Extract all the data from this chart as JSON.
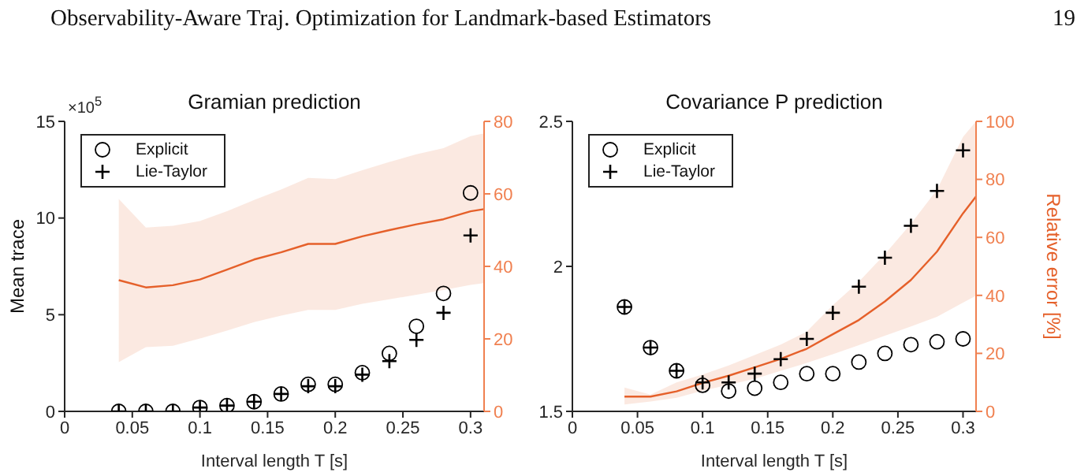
{
  "chart_data": [
    {
      "type": "scatter",
      "title": "Gramian prediction",
      "xlabel": "Interval length T [s]",
      "ylabel": "Mean trace",
      "xlim": [
        0,
        0.31
      ],
      "xticks": [
        0,
        0.05,
        0.1,
        0.15,
        0.2,
        0.25,
        0.3
      ],
      "ylim": [
        0,
        15
      ],
      "yticks": [
        0,
        5,
        10,
        15
      ],
      "y2lim": [
        0,
        80
      ],
      "y2ticks": [
        0,
        20,
        40,
        60,
        80
      ],
      "legend": "top left",
      "annotations": [
        "Observability-Aware Traj. Optimization for Landmark-based Estimators",
        "19",
        "×10$^{5}$"
      ],
      "x": [
        0.04,
        0.06,
        0.08,
        0.1,
        0.12,
        0.14,
        0.16,
        0.18,
        0.2,
        0.22,
        0.24,
        0.26,
        0.28,
        0.3
      ],
      "series": [
        {
          "name": "Explicit",
          "type": "scatter",
          "marker": "circle",
          "color": "#000000",
          "values": [
            0,
            0,
            0,
            0.2,
            0.3,
            0.5,
            0.9,
            1.4,
            1.4,
            2,
            3,
            4.4,
            6.1,
            11.3
          ]
        },
        {
          "name": "Lie-Taylor",
          "type": "scatter",
          "marker": "cross",
          "color": "#000000",
          "values": [
            0,
            0,
            0,
            0.2,
            0.3,
            0.5,
            0.9,
            1.3,
            1.3,
            1.9,
            2.6,
            3.7,
            5.1,
            9.1
          ]
        },
        {
          "type": "line",
          "axis": "y2",
          "marker": "none",
          "color": "#e5602a",
          "x": [
            0.04,
            0.06,
            0.08,
            0.1,
            0.12,
            0.14,
            0.16,
            0.18,
            0.2,
            0.22,
            0.24,
            0.26,
            0.28,
            0.3,
            0.31
          ],
          "values": [
            36.2,
            34.2,
            34.8,
            36.4,
            39.1,
            41.9,
            43.9,
            46.2,
            46.2,
            48.3,
            50,
            51.6,
            53,
            55.2,
            55.8
          ],
          "lower": [
            13.6,
            17.7,
            18.1,
            20.1,
            22.3,
            24.6,
            26.4,
            28,
            28,
            29.7,
            30.9,
            32.2,
            33.5,
            34.9,
            35.4
          ],
          "upper": [
            58.6,
            50.7,
            51.2,
            52.5,
            55.2,
            58.3,
            61.2,
            64.4,
            64.1,
            66.5,
            68.8,
            70.9,
            72.6,
            75.9,
            76.7
          ]
        }
      ]
    },
    {
      "type": "scatter",
      "title": "Covariance P prediction",
      "xlabel": "Interval length T [s]",
      "y2label": "Relative error [%]",
      "xlim": [
        0,
        0.31
      ],
      "xticks": [
        0,
        0.05,
        0.1,
        0.15,
        0.2,
        0.25,
        0.3
      ],
      "ylim": [
        1.5,
        2.5
      ],
      "yticks": [
        1.5,
        2,
        2.5
      ],
      "y2lim": [
        0,
        100
      ],
      "y2ticks": [
        0,
        20,
        40,
        60,
        80,
        100
      ],
      "legend": "top left",
      "x": [
        0.04,
        0.06,
        0.08,
        0.1,
        0.12,
        0.14,
        0.16,
        0.18,
        0.2,
        0.22,
        0.24,
        0.26,
        0.28,
        0.3
      ],
      "series": [
        {
          "name": "Explicit",
          "type": "scatter",
          "marker": "circle",
          "color": "#000000",
          "values": [
            1.86,
            1.72,
            1.64,
            1.59,
            1.57,
            1.58,
            1.6,
            1.63,
            1.63,
            1.67,
            1.7,
            1.73,
            1.74,
            1.75
          ]
        },
        {
          "name": "Lie-Taylor",
          "type": "scatter",
          "marker": "cross",
          "color": "#000000",
          "values": [
            1.86,
            1.72,
            1.64,
            1.6,
            1.6,
            1.63,
            1.68,
            1.75,
            1.84,
            1.93,
            2.03,
            2.14,
            2.26,
            2.4
          ]
        },
        {
          "type": "line",
          "axis": "y2",
          "marker": "none",
          "color": "#e5602a",
          "x": [
            0.04,
            0.06,
            0.08,
            0.1,
            0.12,
            0.14,
            0.16,
            0.18,
            0.2,
            0.22,
            0.24,
            0.26,
            0.28,
            0.3,
            0.31
          ],
          "values": [
            5.1,
            5.1,
            6.9,
            9.8,
            12.3,
            15.2,
            18.1,
            21.6,
            26.6,
            31.5,
            37.9,
            45.3,
            55.1,
            68.3,
            74.1
          ],
          "lower": [
            2.4,
            3.4,
            4.7,
            7.1,
            9.2,
            11.2,
            14,
            16.7,
            19.7,
            22.8,
            26.1,
            29.3,
            32.6,
            37.5,
            39.9
          ],
          "upper": [
            8.2,
            5.8,
            10,
            12.7,
            15.8,
            19.4,
            23,
            27.5,
            36.6,
            44.7,
            54.2,
            64.7,
            76.4,
            94.6,
            100
          ]
        }
      ]
    }
  ]
}
